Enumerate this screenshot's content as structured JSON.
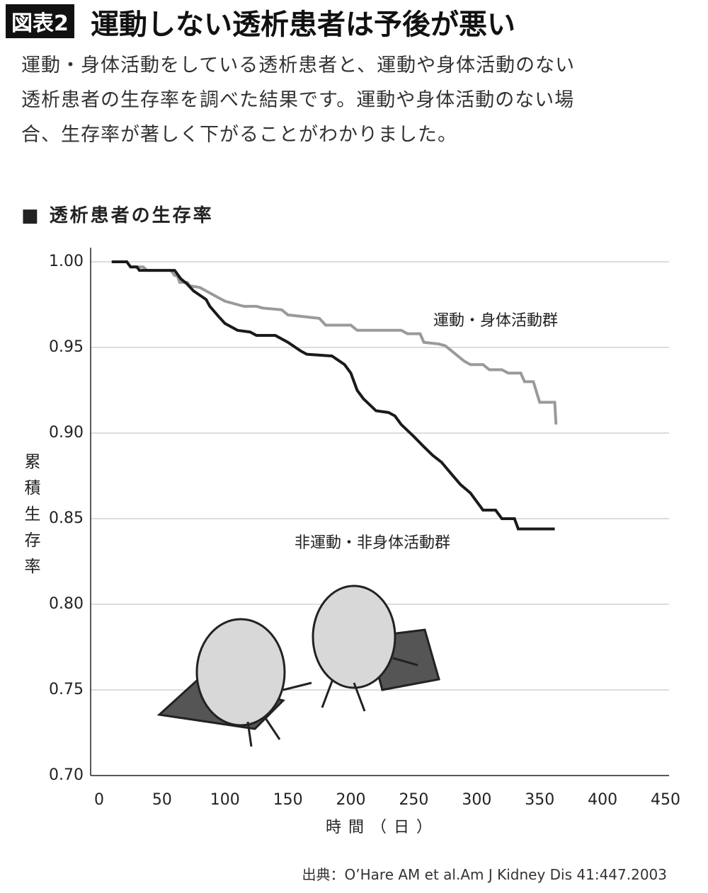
{
  "header": {
    "tag": "図表2",
    "title": "運動しない透析患者は予後が悪い",
    "description": [
      "運動・身体活動をしている透析患者と、運動や身体活動のない",
      "透析患者の生存率を調べた結果です。運動や身体活動のない場",
      "合、生存率が著しく下がることがわかりました。"
    ]
  },
  "chart_data": {
    "type": "line",
    "title": "■ 透析患者の生存率",
    "y_label": "累積生存率",
    "x_label": "時間（日）",
    "xlim": [
      0,
      450
    ],
    "xticks": [
      0,
      50,
      100,
      150,
      200,
      250,
      300,
      350,
      400,
      450
    ],
    "ylim": [
      0.7,
      1.0
    ],
    "yticks": [
      {
        "value": 0.7,
        "label": "0.70"
      },
      0.75,
      {
        "value": 0.8,
        "label": "0.80"
      },
      0.85,
      {
        "value": 0.9,
        "label": "0.90"
      },
      0.95,
      {
        "value": 1.0,
        "label": "1.00"
      }
    ],
    "grid": true,
    "series": [
      {
        "name": "運動・身体活動群",
        "color": "#9a9a9a",
        "x": [
          10,
          22,
          25,
          35,
          38,
          57,
          60,
          62,
          64,
          70,
          72,
          80,
          85,
          95,
          100,
          110,
          115,
          125,
          130,
          145,
          150,
          175,
          180,
          200,
          205,
          240,
          245,
          255,
          258,
          270,
          275,
          280,
          285,
          290,
          295,
          305,
          310,
          320,
          325,
          335,
          338,
          345,
          350,
          362,
          363
        ],
        "y": [
          1.0,
          1.0,
          0.997,
          0.997,
          0.995,
          0.995,
          0.992,
          0.992,
          0.988,
          0.988,
          0.986,
          0.985,
          0.983,
          0.979,
          0.977,
          0.975,
          0.974,
          0.974,
          0.973,
          0.972,
          0.969,
          0.967,
          0.963,
          0.963,
          0.96,
          0.96,
          0.958,
          0.958,
          0.953,
          0.952,
          0.951,
          0.948,
          0.945,
          0.942,
          0.94,
          0.94,
          0.937,
          0.937,
          0.935,
          0.935,
          0.93,
          0.93,
          0.918,
          0.918,
          0.905
        ]
      },
      {
        "name": "非運動・非身体活動群",
        "color": "#1a1a1a",
        "x": [
          10,
          22,
          25,
          30,
          32,
          60,
          65,
          70,
          75,
          85,
          88,
          95,
          100,
          110,
          120,
          125,
          140,
          150,
          160,
          165,
          185,
          195,
          200,
          205,
          210,
          220,
          230,
          235,
          240,
          250,
          258,
          265,
          272,
          280,
          287,
          295,
          300,
          305,
          315,
          320,
          330,
          333,
          362
        ],
        "y": [
          1.0,
          1.0,
          0.997,
          0.997,
          0.995,
          0.995,
          0.99,
          0.987,
          0.983,
          0.978,
          0.974,
          0.968,
          0.964,
          0.96,
          0.959,
          0.957,
          0.957,
          0.953,
          0.948,
          0.946,
          0.945,
          0.94,
          0.935,
          0.925,
          0.92,
          0.913,
          0.912,
          0.91,
          0.905,
          0.898,
          0.892,
          0.887,
          0.883,
          0.876,
          0.87,
          0.865,
          0.86,
          0.855,
          0.855,
          0.85,
          0.85,
          0.844,
          0.844
        ]
      }
    ]
  },
  "source": "出典：O’Hare AM et al.Am J Kidney Dis 41:447.2003"
}
